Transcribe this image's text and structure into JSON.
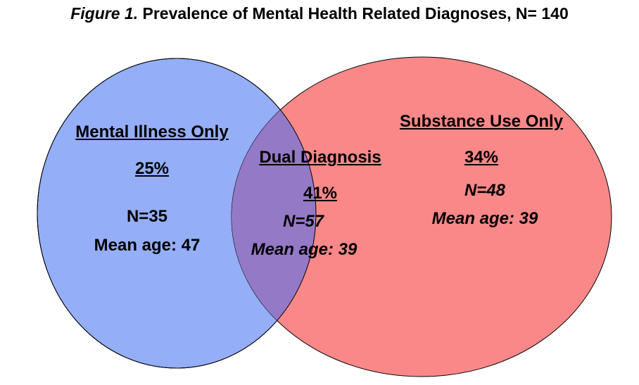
{
  "title": {
    "figure_label": "Figure 1.",
    "text": " Prevalence of Mental Health Related Diagnoses, N= 140"
  },
  "colors": {
    "mental_illness_fill": "#94aef8",
    "substance_use_fill": "#fb8888",
    "overlap_fill": "#9479c6",
    "outline": "#000000"
  },
  "regions": {
    "mental_illness": {
      "label": "Mental Illness Only",
      "percent": "25%",
      "n": "N=35",
      "mean_age": "Mean age: 47"
    },
    "dual": {
      "label": "Dual Diagnosis",
      "percent": "41%",
      "n": "N=57",
      "mean_age": "Mean age: 39"
    },
    "substance_use": {
      "label": "Substance Use Only",
      "percent": "34%",
      "n": "N=48",
      "mean_age": "Mean age: 39"
    }
  }
}
